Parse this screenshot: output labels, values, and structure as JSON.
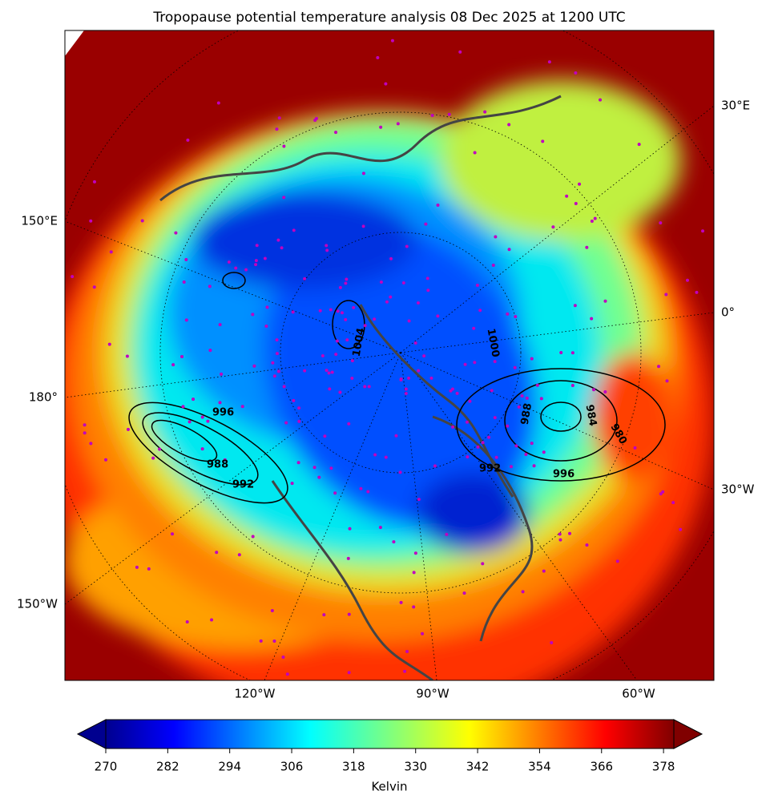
{
  "title": "Tropopause potential temperature analysis 08 Dec 2025 at 1200 UTC",
  "lon_labels": [
    "30°E",
    "150°E",
    "0°",
    "180°",
    "30°W",
    "150°W",
    "120°W",
    "90°W",
    "60°W"
  ],
  "contour_labels": [
    "1004",
    "996",
    "988",
    "992",
    "1000",
    "996",
    "988",
    "984",
    "992",
    "980"
  ],
  "colorbar": {
    "label": "Kelvin",
    "range": [
      270,
      380
    ],
    "ticks": [
      270,
      282,
      294,
      306,
      318,
      330,
      342,
      354,
      366,
      378
    ]
  }
}
